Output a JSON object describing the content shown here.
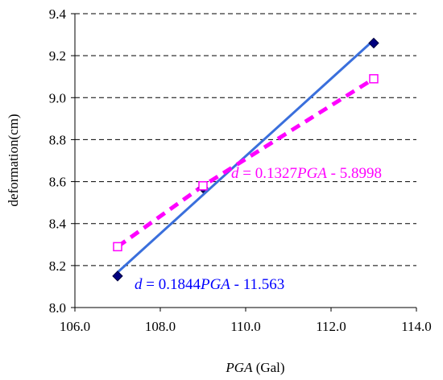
{
  "chart_data": {
    "type": "scatter",
    "title": "",
    "xlabel_italic": "PGA",
    "xlabel_rest": " (Gal)",
    "ylabel": "deformation(cm)",
    "xlim": [
      106.0,
      114.0
    ],
    "ylim": [
      8.0,
      9.4
    ],
    "x_ticks": [
      106.0,
      108.0,
      110.0,
      112.0,
      114.0
    ],
    "y_ticks": [
      8.0,
      8.2,
      8.4,
      8.6,
      8.8,
      9.0,
      9.2,
      9.4
    ],
    "x_tick_labels": [
      "106.0",
      "108.0",
      "110.0",
      "112.0",
      "114.0"
    ],
    "y_tick_labels": [
      "8.0",
      "8.2",
      "8.4",
      "8.6",
      "8.8",
      "9.0",
      "9.2",
      "9.4"
    ],
    "grid": "horizontal dashed",
    "series": [
      {
        "marker": "diamond",
        "color": "#000080",
        "points": [
          [
            107.0,
            8.15
          ],
          [
            109.0,
            8.57
          ],
          [
            113.0,
            9.26
          ]
        ],
        "fit": {
          "slope": 0.1844,
          "intercept": -11.563,
          "color": "#3a6fdc",
          "style": "solid"
        }
      },
      {
        "marker": "square-open",
        "color": "#ff00ff",
        "points": [
          [
            107.0,
            8.29
          ],
          [
            109.0,
            8.58
          ],
          [
            113.0,
            9.09
          ]
        ],
        "fit": {
          "slope": 0.1327,
          "intercept": -5.8998,
          "color": "#ff00ff",
          "style": "dashed"
        }
      }
    ],
    "annotations": [
      {
        "italic": "d",
        "part1": " = 0.1844",
        "italic2": "PGA",
        "part2": " - 11.563",
        "color": "#0000ff"
      },
      {
        "italic": "d",
        "part1": " = 0.1327",
        "italic2": "PGA",
        "part2": " - 5.8998",
        "color": "#ff00ff"
      }
    ]
  }
}
